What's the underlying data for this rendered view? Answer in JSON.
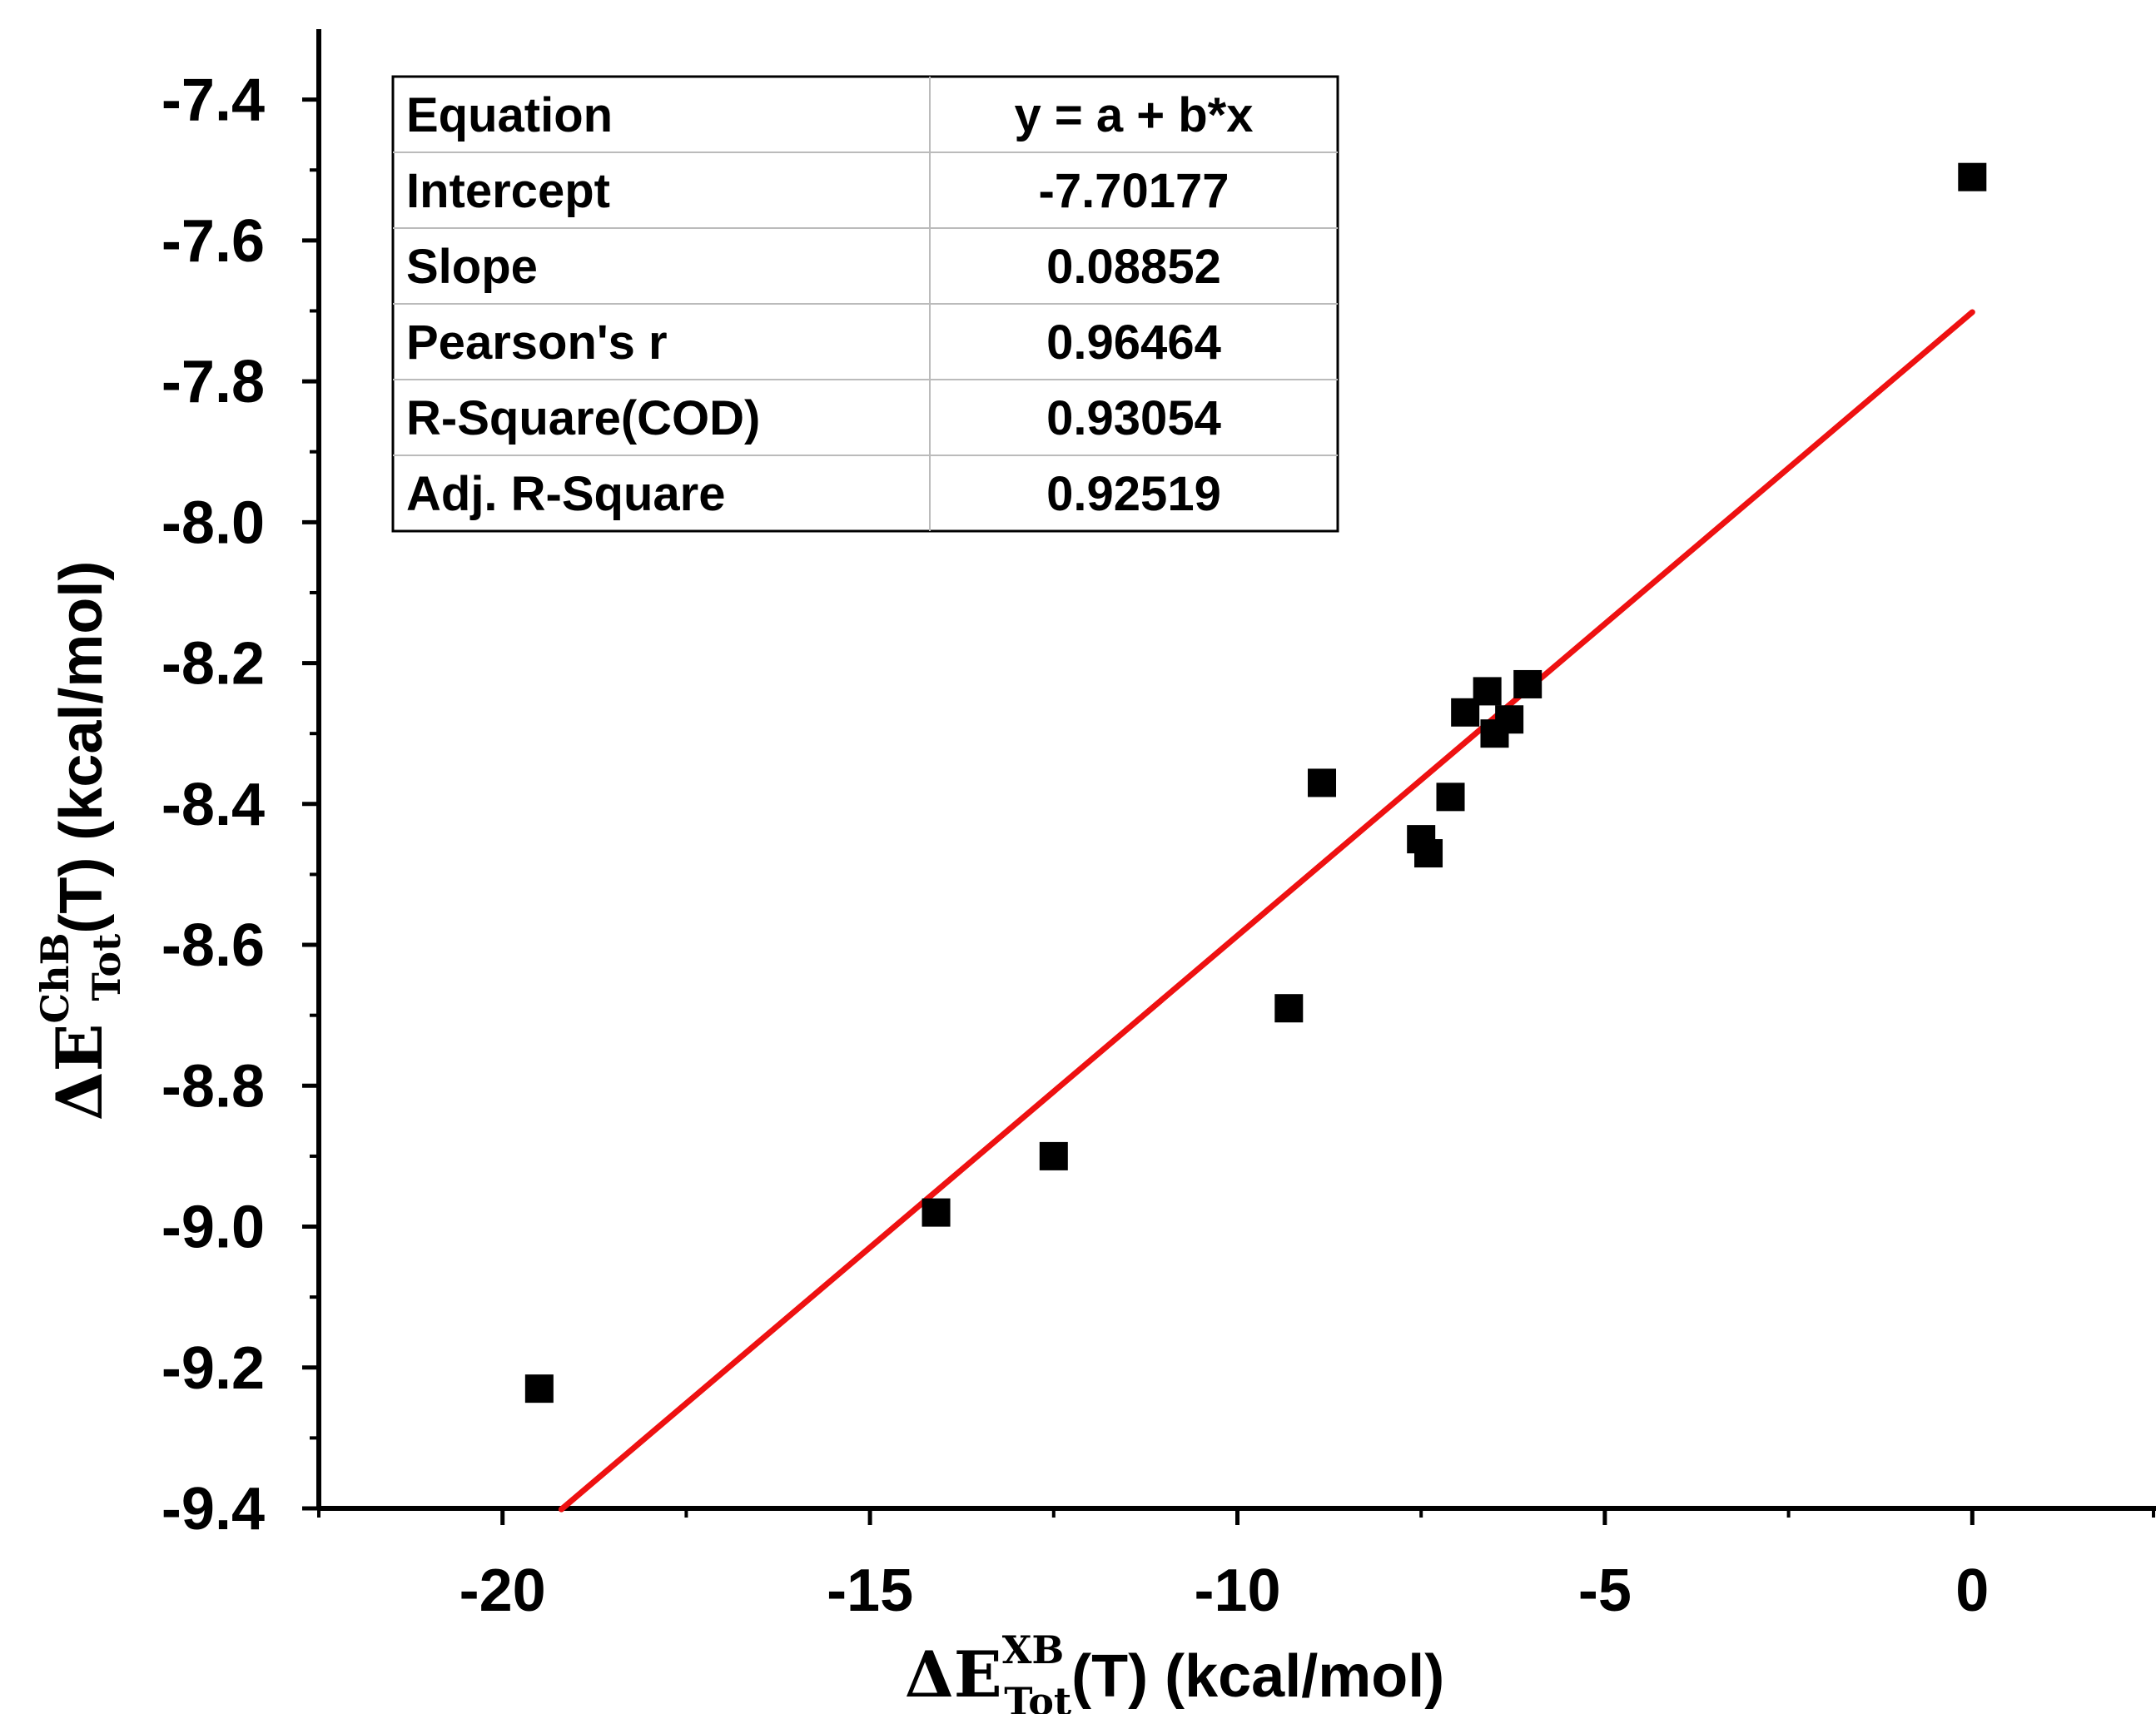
{
  "chart_data": {
    "type": "scatter",
    "title": "",
    "xlabel": {
      "symbol": "ΔE",
      "superscript": "XB",
      "subscript": "Tot",
      "rest": "(T) (kcal/mol)"
    },
    "ylabel": {
      "symbol": "ΔE",
      "superscript": "ChB",
      "subscript": "Tot",
      "rest": "(T) (kcal/mol)"
    },
    "xlim": [
      -22.5,
      2.5
    ],
    "ylim": [
      -9.4,
      -7.3
    ],
    "x_ticks": [
      -20,
      -15,
      -10,
      -5,
      0
    ],
    "x_tick_labels": [
      "-20",
      "-15",
      "-10",
      "-5",
      "0"
    ],
    "y_ticks": [
      -9.4,
      -9.2,
      -9.0,
      -8.8,
      -8.6,
      -8.4,
      -8.2,
      -8.0,
      -7.8,
      -7.6,
      -7.4
    ],
    "y_tick_labels": [
      "-9.4",
      "-9.2",
      "-9.0",
      "-8.8",
      "-8.6",
      "-8.4",
      "-8.2",
      "-8.0",
      "-7.8",
      "-7.6",
      "-7.4"
    ],
    "grid": false,
    "series": [
      {
        "marker": "square",
        "color": "#000000",
        "points": [
          {
            "x": -19.5,
            "y": -9.23
          },
          {
            "x": -14.1,
            "y": -8.98
          },
          {
            "x": -12.5,
            "y": -8.9
          },
          {
            "x": -9.3,
            "y": -8.69
          },
          {
            "x": -8.85,
            "y": -8.37
          },
          {
            "x": -7.5,
            "y": -8.45
          },
          {
            "x": -7.4,
            "y": -8.47
          },
          {
            "x": -7.1,
            "y": -8.39
          },
          {
            "x": -6.9,
            "y": -8.27
          },
          {
            "x": -6.6,
            "y": -8.24
          },
          {
            "x": -6.5,
            "y": -8.3
          },
          {
            "x": -6.3,
            "y": -8.28
          },
          {
            "x": -6.05,
            "y": -8.23
          },
          {
            "x": 0.0,
            "y": -7.51
          }
        ]
      }
    ],
    "fit_line": {
      "color": "#ee1111",
      "intercept": -7.70177,
      "slope": 0.08852,
      "x_range": [
        -19.2,
        0.0
      ]
    },
    "stats_table": {
      "rows": [
        [
          "Equation",
          "y = a + b*x"
        ],
        [
          "Intercept",
          "-7.70177"
        ],
        [
          "Slope",
          "0.08852"
        ],
        [
          "Pearson's r",
          "0.96464"
        ],
        [
          "R-Square(COD)",
          "0.93054"
        ],
        [
          "Adj. R-Square",
          "0.92519"
        ]
      ]
    }
  }
}
